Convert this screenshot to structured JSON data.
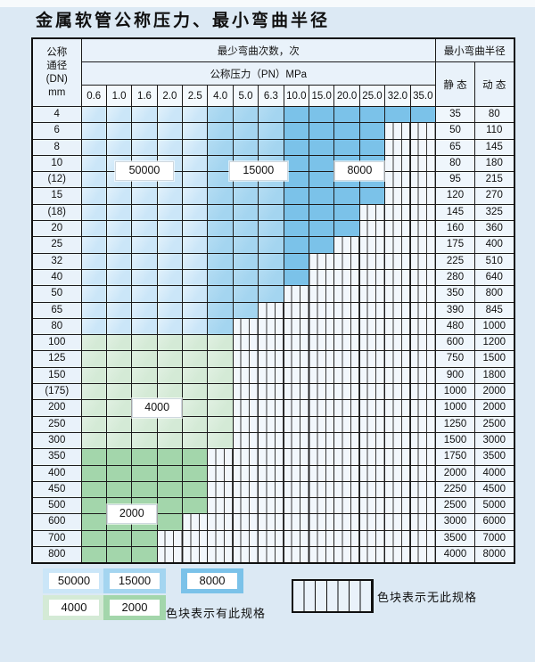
{
  "title": "金属软管公称压力、最小弯曲半径",
  "table": {
    "corner_header_lines": [
      "公称",
      "通径",
      "(DN)",
      "mm"
    ],
    "cycles_header": "最少弯曲次数，次",
    "radius_header": "最小弯曲半径",
    "pressure_header": "公称压力（PN）MPa",
    "static_header": "静 态",
    "dynamic_header": "动 态"
  },
  "chart_data": {
    "type": "table",
    "title": "金属软管公称压力、最小弯曲半径",
    "x_columns_pressure_MPa": [
      "0.6",
      "1.0",
      "1.6",
      "2.0",
      "2.5",
      "4.0",
      "5.0",
      "6.3",
      "10.0",
      "15.0",
      "20.0",
      "25.0",
      "32.0",
      "35.0"
    ],
    "cycle_count_shading": {
      "blue_bands_by_pressure": {
        "50000": [
          "0.6",
          "2.5"
        ],
        "15000": [
          "4.0",
          "6.3"
        ],
        "8000": [
          "10.0",
          "35.0"
        ]
      },
      "green_bands_by_dn": {
        "4000": [
          "100",
          "300"
        ],
        "2000": [
          "350",
          "800"
        ]
      }
    },
    "rows": [
      {
        "dn": "4",
        "static": "35",
        "dynamic": "80",
        "palette": "blue",
        "colored_cols": 14,
        "colored_through": "35.0"
      },
      {
        "dn": "6",
        "static": "50",
        "dynamic": "110",
        "palette": "blue",
        "colored_cols": 12,
        "colored_through": "25.0"
      },
      {
        "dn": "8",
        "static": "65",
        "dynamic": "145",
        "palette": "blue",
        "colored_cols": 12,
        "colored_through": "25.0"
      },
      {
        "dn": "10",
        "static": "80",
        "dynamic": "180",
        "palette": "blue",
        "colored_cols": 12,
        "colored_through": "25.0"
      },
      {
        "dn": "(12)",
        "static": "95",
        "dynamic": "215",
        "palette": "blue",
        "colored_cols": 12,
        "colored_through": "25.0"
      },
      {
        "dn": "15",
        "static": "120",
        "dynamic": "270",
        "palette": "blue",
        "colored_cols": 12,
        "colored_through": "25.0"
      },
      {
        "dn": "(18)",
        "static": "145",
        "dynamic": "325",
        "palette": "blue",
        "colored_cols": 11,
        "colored_through": "20.0"
      },
      {
        "dn": "20",
        "static": "160",
        "dynamic": "360",
        "palette": "blue",
        "colored_cols": 11,
        "colored_through": "20.0"
      },
      {
        "dn": "25",
        "static": "175",
        "dynamic": "400",
        "palette": "blue",
        "colored_cols": 10,
        "colored_through": "15.0"
      },
      {
        "dn": "32",
        "static": "225",
        "dynamic": "510",
        "palette": "blue",
        "colored_cols": 9,
        "colored_through": "10.0"
      },
      {
        "dn": "40",
        "static": "280",
        "dynamic": "640",
        "palette": "blue",
        "colored_cols": 9,
        "colored_through": "10.0"
      },
      {
        "dn": "50",
        "static": "350",
        "dynamic": "800",
        "palette": "blue",
        "colored_cols": 8,
        "colored_through": "6.3"
      },
      {
        "dn": "65",
        "static": "390",
        "dynamic": "845",
        "palette": "blue",
        "colored_cols": 7,
        "colored_through": "5.0"
      },
      {
        "dn": "80",
        "static": "480",
        "dynamic": "1000",
        "palette": "blue",
        "colored_cols": 6,
        "colored_through": "4.0"
      },
      {
        "dn": "100",
        "static": "600",
        "dynamic": "1200",
        "palette": "green-light",
        "colored_cols": 6,
        "colored_through": "4.0"
      },
      {
        "dn": "125",
        "static": "750",
        "dynamic": "1500",
        "palette": "green-light",
        "colored_cols": 6,
        "colored_through": "4.0"
      },
      {
        "dn": "150",
        "static": "900",
        "dynamic": "1800",
        "palette": "green-light",
        "colored_cols": 6,
        "colored_through": "4.0"
      },
      {
        "dn": "(175)",
        "static": "1000",
        "dynamic": "2000",
        "palette": "green-light",
        "colored_cols": 6,
        "colored_through": "4.0"
      },
      {
        "dn": "200",
        "static": "1000",
        "dynamic": "2000",
        "palette": "green-light",
        "colored_cols": 6,
        "colored_through": "4.0"
      },
      {
        "dn": "250",
        "static": "1250",
        "dynamic": "2500",
        "palette": "green-light",
        "colored_cols": 6,
        "colored_through": "4.0"
      },
      {
        "dn": "300",
        "static": "1500",
        "dynamic": "3000",
        "palette": "green-light",
        "colored_cols": 6,
        "colored_through": "4.0"
      },
      {
        "dn": "350",
        "static": "1750",
        "dynamic": "3500",
        "palette": "green-dark",
        "colored_cols": 5,
        "colored_through": "2.5"
      },
      {
        "dn": "400",
        "static": "2000",
        "dynamic": "4000",
        "palette": "green-dark",
        "colored_cols": 5,
        "colored_through": "2.5"
      },
      {
        "dn": "450",
        "static": "2250",
        "dynamic": "4500",
        "palette": "green-dark",
        "colored_cols": 5,
        "colored_through": "2.5"
      },
      {
        "dn": "500",
        "static": "2500",
        "dynamic": "5000",
        "palette": "green-dark",
        "colored_cols": 5,
        "colored_through": "2.5"
      },
      {
        "dn": "600",
        "static": "3000",
        "dynamic": "6000",
        "palette": "green-dark",
        "colored_cols": 4,
        "colored_through": "2.0"
      },
      {
        "dn": "700",
        "static": "3500",
        "dynamic": "7000",
        "palette": "green-dark",
        "colored_cols": 3,
        "colored_through": "1.6"
      },
      {
        "dn": "800",
        "static": "4000",
        "dynamic": "8000",
        "palette": "green-dark",
        "colored_cols": 3,
        "colored_through": "1.6"
      }
    ],
    "region_labels": [
      {
        "text": "50000",
        "col_center": 2.5,
        "row_center": 4.0
      },
      {
        "text": "15000",
        "col_center": 7.0,
        "row_center": 4.0
      },
      {
        "text": "8000",
        "col_center": 11.0,
        "row_center": 4.0
      },
      {
        "text": "4000",
        "col_center": 3.0,
        "row_center": 18.5
      },
      {
        "text": "2000",
        "col_center": 2.0,
        "row_center": 25.0
      }
    ]
  },
  "legend": {
    "items": [
      {
        "label": "50000",
        "color_key": "c-lb"
      },
      {
        "label": "15000",
        "color_key": "c-mb"
      },
      {
        "label": "8000",
        "color_key": "c-db"
      },
      {
        "label": "4000",
        "color_key": "c-lg"
      },
      {
        "label": "2000",
        "color_key": "c-dg"
      }
    ],
    "has_spec_text": "色块表示有此规格",
    "no_spec_text": "色块表示无此规格"
  },
  "colors": {
    "page_bg": "#dce9f4",
    "light_blue_50000": "#cbe6f8",
    "medium_blue_15000": "#a4d5f0",
    "dark_blue_8000": "#7bc2e9",
    "light_green_4000": "#d4ead6",
    "medium_green_2000": "#a3d6ab",
    "header_bg": "#e9f2fa",
    "tick_row_bg": "#f3f9fd",
    "value_cell_bg": "#eff6fc",
    "hatch_bg": "#f2f7fc",
    "grid_line": "#1c1c1c"
  }
}
